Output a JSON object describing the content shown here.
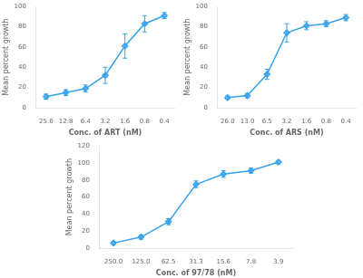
{
  "chart_data": [
    {
      "type": "line",
      "xlabel": "Conc. of ART (nM)",
      "ylabel": "Mean percent growth",
      "categories": [
        "25.6",
        "12.8",
        "6.4",
        "3.2",
        "1.6",
        "0.8",
        "0.4"
      ],
      "values": [
        11,
        15,
        19,
        32,
        61,
        83,
        91
      ],
      "yerr": [
        2.5,
        3,
        3.5,
        8,
        12,
        8,
        3
      ],
      "ylim": [
        0,
        100
      ],
      "yticks": [
        0,
        20,
        40,
        60,
        80,
        100
      ],
      "marker": "diamond",
      "grid": false
    },
    {
      "type": "line",
      "xlabel": "Conc. of ARS (nM)",
      "ylabel": "Mean percent growth",
      "categories": [
        "26.0",
        "13.0",
        "6.5",
        "3.2",
        "1.6",
        "0.8",
        "0.4"
      ],
      "values": [
        10,
        12,
        33,
        74,
        81,
        83,
        89
      ],
      "yerr": [
        1.5,
        2,
        5,
        9,
        4,
        3,
        3
      ],
      "ylim": [
        0,
        100
      ],
      "yticks": [
        0,
        20,
        40,
        60,
        80,
        100
      ],
      "marker": "diamond",
      "grid": false
    },
    {
      "type": "line",
      "xlabel": "Conc. of 97/78 (nM)",
      "ylabel": "Mean percent growth",
      "categories": [
        "250.0",
        "125.0",
        "62.5",
        "31.3",
        "15.6",
        "7.8",
        "3.9"
      ],
      "values": [
        6,
        13,
        31,
        75,
        87,
        91,
        101
      ],
      "yerr": [
        1.5,
        2.5,
        3.5,
        4,
        4,
        3,
        2
      ],
      "ylim": [
        0,
        120
      ],
      "yticks": [
        0,
        20,
        40,
        60,
        80,
        100,
        120
      ],
      "marker": "diamond",
      "grid": false
    }
  ]
}
